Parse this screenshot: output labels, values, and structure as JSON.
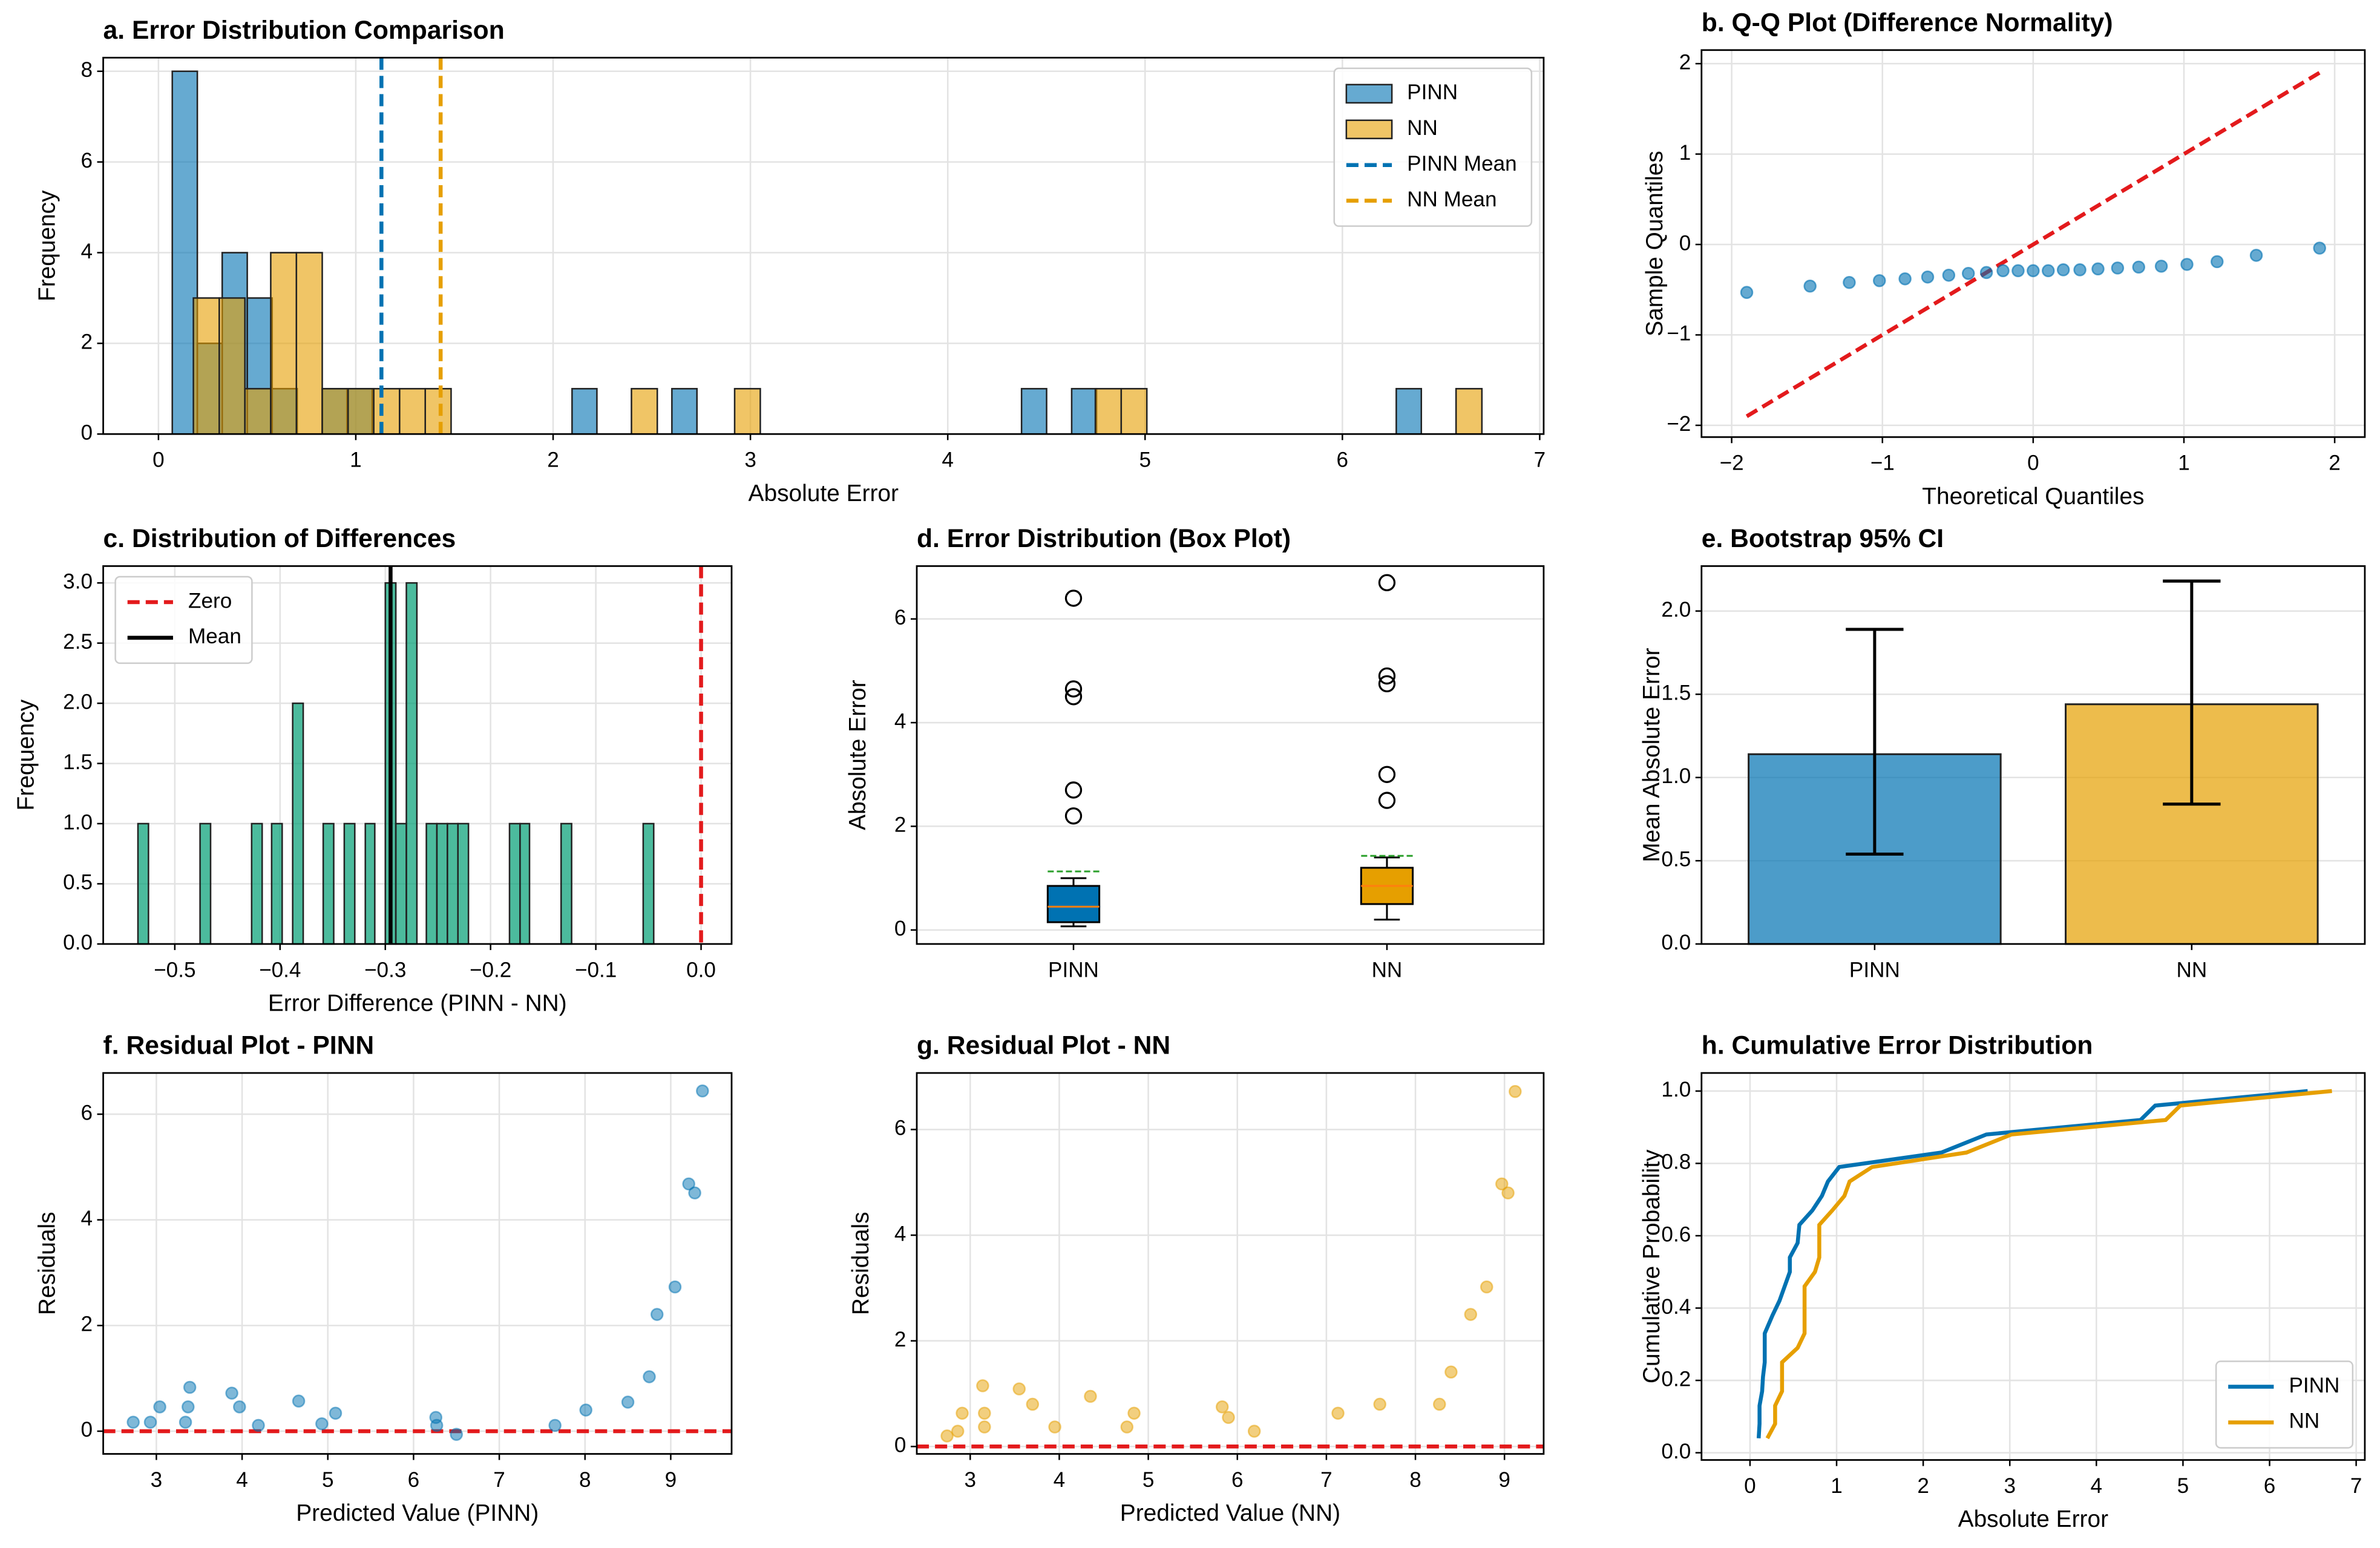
{
  "chart_data": [
    {
      "type": "histogram",
      "title": "a. Error Distribution Comparison",
      "xlabel": "Absolute Error",
      "ylabel": "Frequency",
      "series": [
        {
          "name": "PINN",
          "color": "#0072b2",
          "alpha": 0.6,
          "bins": [
            0.07,
            0.197,
            0.323,
            0.45,
            0.576,
            0.703,
            0.83,
            0.956,
            1.083,
            1.209,
            1.336,
            1.463,
            1.589,
            1.716,
            1.842,
            1.969,
            2.096,
            2.222,
            2.349,
            2.475,
            2.602,
            2.729,
            2.855,
            2.982,
            3.108,
            3.235,
            3.362,
            3.488,
            3.615,
            3.741,
            3.868,
            3.995,
            4.121,
            4.248,
            4.374,
            4.501,
            4.628,
            4.754,
            4.881,
            5.007,
            5.134,
            5.261,
            5.387,
            5.514,
            5.64,
            5.767,
            5.894,
            6.02,
            6.147,
            6.273,
            6.4
          ],
          "values": [
            8,
            2,
            4,
            3,
            1,
            0,
            1,
            1,
            0,
            0,
            0,
            0,
            0,
            0,
            0,
            0,
            1,
            0,
            0,
            0,
            1,
            0,
            0,
            0,
            0,
            0,
            0,
            0,
            0,
            0,
            0,
            0,
            0,
            0,
            1,
            0,
            1,
            0,
            0,
            0,
            0,
            0,
            0,
            0,
            0,
            0,
            0,
            0,
            0,
            1
          ]
        },
        {
          "name": "NN",
          "color": "#e69f00",
          "alpha": 0.6,
          "bins": [
            0.177,
            0.308,
            0.438,
            0.569,
            0.699,
            0.83,
            0.961,
            1.091,
            1.222,
            1.352,
            1.483,
            1.614,
            1.744,
            1.875,
            2.005,
            2.136,
            2.267,
            2.397,
            2.528,
            2.658,
            2.789,
            2.92,
            3.05,
            3.181,
            3.311,
            3.442,
            3.573,
            3.703,
            3.834,
            3.964,
            4.095,
            4.226,
            4.356,
            4.487,
            4.617,
            4.748,
            4.879,
            5.009,
            5.14,
            5.27,
            5.401,
            5.532,
            5.662,
            5.793,
            5.923,
            6.054,
            6.185,
            6.315,
            6.446,
            6.576,
            6.707
          ],
          "values": [
            3,
            3,
            1,
            4,
            4,
            1,
            1,
            1,
            1,
            1,
            0,
            0,
            0,
            0,
            0,
            0,
            0,
            1,
            0,
            0,
            0,
            1,
            0,
            0,
            0,
            0,
            0,
            0,
            0,
            0,
            0,
            0,
            0,
            0,
            0,
            1,
            1,
            0,
            0,
            0,
            0,
            0,
            0,
            0,
            0,
            0,
            0,
            0,
            0,
            1
          ]
        }
      ],
      "vlines": [
        {
          "name": "PINN Mean",
          "color": "#0072b2",
          "value": 1.13,
          "dashed": true
        },
        {
          "name": "NN Mean",
          "color": "#e69f00",
          "value": 1.43,
          "dashed": true
        }
      ],
      "xlim": [
        -0.28,
        7.02
      ],
      "ylim": [
        0,
        8.3
      ],
      "xticks": [
        0,
        1,
        2,
        3,
        4,
        5,
        6,
        7
      ],
      "yticks": [
        0,
        2,
        4,
        6,
        8
      ],
      "grid": true,
      "legend": "upper right"
    },
    {
      "type": "scatter",
      "title": "b. Q-Q Plot (Difference Normality)",
      "xlabel": "Theoretical Quantiles",
      "ylabel": "Sample Quantiles",
      "series": [
        {
          "color": "#0072b2",
          "alpha": 0.6,
          "x": [
            -1.9,
            -1.48,
            -1.22,
            -1.02,
            -0.85,
            -0.7,
            -0.56,
            -0.43,
            -0.31,
            -0.2,
            -0.1,
            0,
            0.1,
            0.2,
            0.31,
            0.43,
            0.56,
            0.7,
            0.85,
            1.02,
            1.22,
            1.48,
            1.9
          ],
          "values": [
            -0.53,
            -0.46,
            -0.42,
            -0.4,
            -0.38,
            -0.36,
            -0.34,
            -0.32,
            -0.31,
            -0.29,
            -0.29,
            -0.29,
            -0.29,
            -0.28,
            -0.28,
            -0.27,
            -0.26,
            -0.25,
            -0.24,
            -0.22,
            -0.19,
            -0.12,
            -0.04
          ]
        }
      ],
      "refline": {
        "color": "#e31a1c",
        "x": [
          -1.9,
          1.9
        ],
        "y": [
          -1.9,
          1.9
        ]
      },
      "xlim": [
        -2.2,
        2.2
      ],
      "ylim": [
        -2.13,
        2.15
      ],
      "xticks": [
        {
          "value": -2,
          "label": "−2"
        },
        {
          "value": -1,
          "label": "−1"
        },
        0,
        1,
        2
      ],
      "yticks": [
        {
          "value": -2,
          "label": "−2"
        },
        {
          "value": -1,
          "label": "−1"
        },
        0,
        1,
        2
      ],
      "grid": true
    },
    {
      "type": "histogram",
      "title": "c. Distribution of Differences",
      "xlabel": "Error Difference (PINN - NN)",
      "ylabel": "Frequency",
      "series": [
        {
          "color": "#009e73",
          "alpha": 0.7,
          "bins": [
            -0.535,
            -0.525,
            -0.515,
            -0.506,
            -0.496,
            -0.486,
            -0.476,
            -0.466,
            -0.457,
            -0.447,
            -0.437,
            -0.427,
            -0.417,
            -0.408,
            -0.398,
            -0.388,
            -0.378,
            -0.368,
            -0.359,
            -0.349,
            -0.339,
            -0.329,
            -0.319,
            -0.31,
            -0.3,
            -0.29,
            -0.28,
            -0.27,
            -0.261,
            -0.251,
            -0.241,
            -0.231,
            -0.221,
            -0.212,
            -0.202,
            -0.192,
            -0.182,
            -0.172,
            -0.163,
            -0.153,
            -0.143,
            -0.133,
            -0.123,
            -0.114,
            -0.104,
            -0.094,
            -0.084,
            -0.074,
            -0.065,
            -0.055,
            -0.045
          ],
          "values": [
            1,
            0,
            0,
            0,
            0,
            0,
            1,
            0,
            0,
            0,
            0,
            1,
            0,
            1,
            0,
            2,
            0,
            0,
            1,
            0,
            1,
            0,
            1,
            0,
            3,
            1,
            3,
            0,
            1,
            1,
            1,
            1,
            0,
            0,
            0,
            0,
            1,
            1,
            0,
            0,
            0,
            1,
            0,
            0,
            0,
            0,
            0,
            0,
            0,
            1
          ]
        }
      ],
      "vlines": [
        {
          "name": "Zero",
          "color": "#e31a1c",
          "value": 0,
          "dashed": true
        },
        {
          "name": "Mean",
          "color": "#000000",
          "value": -0.295,
          "dashed": false
        }
      ],
      "xlim": [
        -0.568,
        0.029
      ],
      "ylim": [
        0,
        3.14
      ],
      "xticks": [
        {
          "value": -0.5,
          "label": "−0.5"
        },
        {
          "value": -0.4,
          "label": "−0.4"
        },
        {
          "value": -0.3,
          "label": "−0.3"
        },
        {
          "value": -0.2,
          "label": "−0.2"
        },
        {
          "value": -0.1,
          "label": "−0.1"
        },
        {
          "value": 0,
          "label": "0.0"
        }
      ],
      "yticks": [
        {
          "value": 0,
          "label": "0.0"
        },
        0.5,
        {
          "value": 1,
          "label": "1.0"
        },
        1.5,
        {
          "value": 2,
          "label": "2.0"
        },
        2.5,
        {
          "value": 3,
          "label": "3.0"
        }
      ],
      "grid": true,
      "legend": "upper left"
    },
    {
      "type": "box",
      "title": "d. Error Distribution (Box Plot)",
      "ylabel": "Absolute Error",
      "categories": [
        "PINN",
        "NN"
      ],
      "colors": [
        "#0072b2",
        "#e69f00"
      ],
      "median_color": "#ff7f0e",
      "mean_color": "#2ca02c",
      "boxes": [
        {
          "whislo": 0.07,
          "q1": 0.15,
          "med": 0.45,
          "q3": 0.85,
          "whishi": 1.0,
          "mean": 1.13,
          "fliers": [
            2.2,
            2.7,
            4.5,
            4.65,
            6.4
          ]
        },
        {
          "whislo": 0.2,
          "q1": 0.5,
          "med": 0.85,
          "q3": 1.2,
          "whishi": 1.4,
          "mean": 1.43,
          "fliers": [
            2.5,
            3.0,
            4.75,
            4.9,
            6.7
          ]
        }
      ],
      "ylim": [
        -0.27,
        7.02
      ],
      "yticks": [
        0,
        2,
        4,
        6
      ],
      "grid": true
    },
    {
      "type": "bar",
      "title": "e. Bootstrap 95% CI",
      "ylabel": "Mean Absolute Error",
      "categories": [
        "PINN",
        "NN"
      ],
      "colors": [
        "#0072b2",
        "#e69f00"
      ],
      "alpha": 0.7,
      "values": [
        1.14,
        1.44
      ],
      "lower": [
        0.54,
        0.84
      ],
      "upper": [
        1.89,
        2.18
      ],
      "ylim": [
        0,
        2.27
      ],
      "yticks": [
        {
          "value": 0,
          "label": "0.0"
        },
        0.5,
        {
          "value": 1,
          "label": "1.0"
        },
        1.5,
        {
          "value": 2,
          "label": "2.0"
        }
      ],
      "grid": true
    },
    {
      "type": "scatter",
      "title": "f. Residual Plot - PINN",
      "xlabel": "Predicted Value (PINN)",
      "ylabel": "Residuals",
      "series": [
        {
          "color": "#0072b2",
          "alpha": 0.5,
          "x": [
            2.73,
            2.93,
            3.04,
            3.34,
            3.37,
            3.39,
            3.88,
            3.97,
            4.19,
            4.66,
            4.93,
            5.09,
            6.26,
            6.27,
            6.5,
            7.65,
            8.01,
            8.5,
            8.75,
            8.84,
            9.05,
            9.21,
            9.28,
            9.37
          ],
          "values": [
            0.17,
            0.17,
            0.46,
            0.17,
            0.46,
            0.83,
            0.72,
            0.46,
            0.11,
            0.57,
            0.14,
            0.34,
            0.26,
            0.11,
            -0.06,
            0.11,
            0.4,
            0.55,
            1.03,
            2.21,
            2.73,
            4.68,
            4.51,
            6.44
          ]
        }
      ],
      "hlines": [
        {
          "color": "#e31a1c",
          "value": 0
        }
      ],
      "xlim": [
        2.38,
        9.71
      ],
      "ylim": [
        -0.43,
        6.78
      ],
      "xticks": [
        3,
        4,
        5,
        6,
        7,
        8,
        9
      ],
      "yticks": [
        0,
        2,
        4,
        6
      ],
      "grid": true
    },
    {
      "type": "scatter",
      "title": "g. Residual Plot - NN",
      "xlabel": "Predicted Value (NN)",
      "ylabel": "Residuals",
      "series": [
        {
          "color": "#e69f00",
          "alpha": 0.5,
          "x": [
            2.74,
            2.86,
            2.91,
            3.14,
            3.16,
            3.16,
            3.55,
            3.7,
            3.95,
            4.35,
            4.76,
            4.84,
            5.83,
            5.9,
            6.19,
            7.13,
            7.6,
            8.27,
            8.4,
            8.62,
            8.8,
            8.97,
            9.04,
            9.12
          ],
          "values": [
            0.2,
            0.29,
            0.63,
            1.15,
            0.63,
            0.37,
            1.09,
            0.8,
            0.37,
            0.95,
            0.37,
            0.63,
            0.75,
            0.55,
            0.29,
            0.63,
            0.8,
            0.8,
            1.41,
            2.5,
            3.02,
            4.97,
            4.8,
            6.72
          ]
        }
      ],
      "hlines": [
        {
          "color": "#e31a1c",
          "value": 0
        }
      ],
      "xlim": [
        2.4,
        9.44
      ],
      "ylim": [
        -0.14,
        7.07
      ],
      "xticks": [
        3,
        4,
        5,
        6,
        7,
        8,
        9
      ],
      "yticks": [
        0,
        2,
        4,
        6
      ],
      "grid": true
    },
    {
      "type": "line",
      "title": "h. Cumulative Error Distribution",
      "xlabel": "Absolute Error",
      "ylabel": "Cumulative Probability",
      "series": [
        {
          "name": "PINN",
          "color": "#0072b2",
          "x": [
            0.1,
            0.11,
            0.11,
            0.14,
            0.15,
            0.17,
            0.17,
            0.17,
            0.26,
            0.34,
            0.4,
            0.46,
            0.46,
            0.55,
            0.57,
            0.72,
            0.83,
            0.9,
            1.03,
            2.21,
            2.73,
            4.51,
            4.68,
            6.44
          ],
          "values": [
            0.04,
            0.08,
            0.13,
            0.17,
            0.21,
            0.25,
            0.29,
            0.33,
            0.38,
            0.42,
            0.46,
            0.5,
            0.54,
            0.58,
            0.63,
            0.67,
            0.71,
            0.75,
            0.79,
            0.83,
            0.88,
            0.92,
            0.96,
            1.0
          ]
        },
        {
          "name": "NN",
          "color": "#e69f00",
          "x": [
            0.2,
            0.29,
            0.29,
            0.37,
            0.37,
            0.37,
            0.55,
            0.63,
            0.63,
            0.63,
            0.63,
            0.75,
            0.8,
            0.8,
            0.8,
            0.95,
            1.09,
            1.15,
            1.41,
            2.5,
            3.02,
            4.8,
            4.97,
            6.72
          ],
          "values": [
            0.04,
            0.08,
            0.13,
            0.17,
            0.21,
            0.25,
            0.29,
            0.33,
            0.38,
            0.42,
            0.46,
            0.5,
            0.54,
            0.58,
            0.63,
            0.67,
            0.71,
            0.75,
            0.79,
            0.83,
            0.88,
            0.92,
            0.96,
            1.0
          ]
        }
      ],
      "xlim": [
        -0.56,
        7.1
      ],
      "ylim": [
        -0.02,
        1.05
      ],
      "xticks": [
        0,
        1,
        2,
        3,
        4,
        5,
        6,
        7
      ],
      "yticks": [
        {
          "value": 0,
          "label": "0.0"
        },
        0.2,
        0.4,
        0.6,
        0.8,
        {
          "value": 1,
          "label": "1.0"
        }
      ],
      "grid": true,
      "legend": "lower right"
    }
  ]
}
